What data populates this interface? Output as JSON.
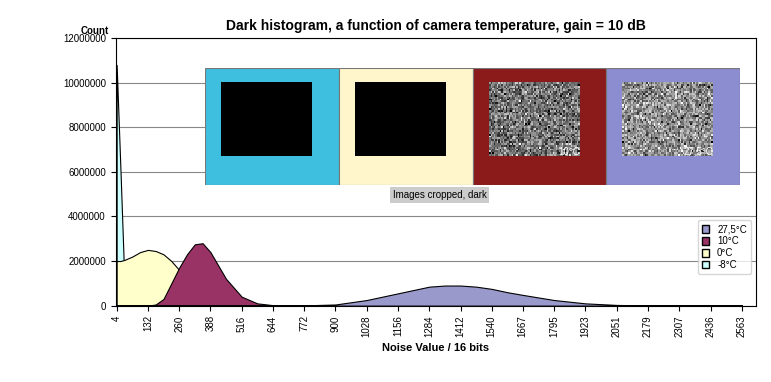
{
  "chart_data": {
    "type": "area",
    "title": "Dark histogram, a function of camera temperature, gain = 10 dB",
    "x_label": "Noise Value / 16 bits",
    "y_label": "Count",
    "annotations": [
      "Images cropped, dark"
    ],
    "x": [
      4,
      20,
      36,
      68,
      100,
      132,
      164,
      196,
      228,
      260,
      292,
      324,
      356,
      388,
      420,
      452,
      516,
      580,
      644,
      708,
      772,
      900,
      1028,
      1156,
      1284,
      1348,
      1412,
      1476,
      1540,
      1604,
      1667,
      1795,
      1923,
      2051,
      2179,
      2307,
      2436,
      2563
    ],
    "series": [
      {
        "name": "27,5°C",
        "color": "#9999cc",
        "values": [
          0,
          0,
          0,
          0,
          0,
          0,
          0,
          0,
          0,
          0,
          0,
          0,
          0,
          0,
          0,
          0,
          0,
          0,
          0,
          0,
          10000,
          50000,
          250000,
          550000,
          850000,
          900000,
          900000,
          850000,
          750000,
          600000,
          480000,
          250000,
          100000,
          30000,
          10000,
          0,
          0,
          0
        ]
      },
      {
        "name": "10°C",
        "color": "#993366",
        "values": [
          0,
          0,
          0,
          0,
          0,
          0,
          50000,
          300000,
          1000000,
          1700000,
          2300000,
          2750000,
          2800000,
          2400000,
          1800000,
          1200000,
          400000,
          100000,
          20000,
          0,
          0,
          0,
          0,
          0,
          0,
          0,
          0,
          0,
          0,
          0,
          0,
          0,
          0,
          0,
          0,
          0,
          0,
          0
        ]
      },
      {
        "name": "0°C",
        "color": "#ffffcc",
        "values": [
          2000000,
          2000000,
          2050000,
          2200000,
          2400000,
          2500000,
          2450000,
          2300000,
          2000000,
          1600000,
          1100000,
          600000,
          250000,
          80000,
          20000,
          0,
          0,
          0,
          0,
          0,
          0,
          0,
          0,
          0,
          0,
          0,
          0,
          0,
          0,
          0,
          0,
          0,
          0,
          0,
          0,
          0,
          0,
          0
        ]
      },
      {
        "name": "-8°C",
        "color": "#ccffff",
        "values": [
          10800000,
          6000000,
          1000000,
          0,
          0,
          0,
          0,
          0,
          0,
          0,
          0,
          0,
          0,
          0,
          0,
          0,
          0,
          0,
          0,
          0,
          0,
          0,
          0,
          0,
          0,
          0,
          0,
          0,
          0,
          0,
          0,
          0,
          0,
          0,
          0,
          0,
          0,
          0
        ]
      }
    ],
    "xlim": [
      0,
      2620
    ],
    "xticks": [
      4,
      132,
      260,
      388,
      516,
      644,
      772,
      900,
      1028,
      1156,
      1284,
      1412,
      1540,
      1667,
      1795,
      1923,
      2051,
      2179,
      2307,
      2436,
      2563
    ],
    "ylim": [
      0,
      12000000
    ],
    "yticks": [
      0,
      2000000,
      4000000,
      6000000,
      8000000,
      10000000,
      12000000
    ],
    "grid": true,
    "legend": "lower right"
  }
}
